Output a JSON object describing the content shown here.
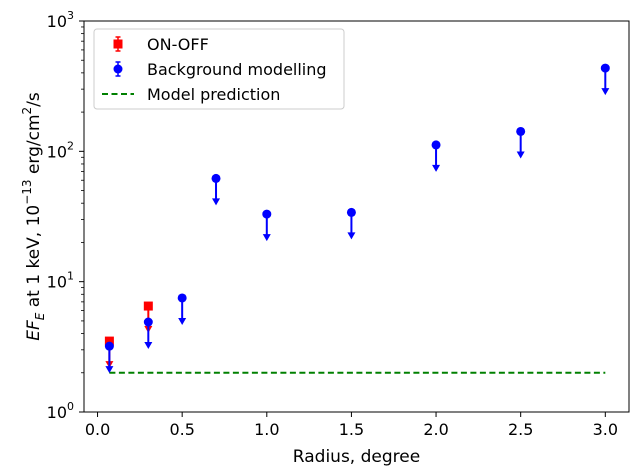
{
  "chart_data": {
    "type": "scatter",
    "xlabel": "Radius, degree",
    "ylabel": {
      "base": "EF",
      "sub": "E",
      "mid": " at 1 keV, 10",
      "exp": "−13",
      "unit_a": " erg/cm",
      "unit_exp": "2",
      "unit_b": "/s"
    },
    "xlim": [
      -0.08,
      3.14
    ],
    "ylim": [
      1,
      1000
    ],
    "yscale": "log",
    "grid": false,
    "legend_position": "top-left",
    "x_ticks": [
      {
        "value": 0.0,
        "label": "0.0"
      },
      {
        "value": 0.5,
        "label": "0.5"
      },
      {
        "value": 1.0,
        "label": "1.0"
      },
      {
        "value": 1.5,
        "label": "1.5"
      },
      {
        "value": 2.0,
        "label": "2.0"
      },
      {
        "value": 2.5,
        "label": "2.5"
      },
      {
        "value": 3.0,
        "label": "3.0"
      }
    ],
    "y_ticks": [
      {
        "value": 1,
        "base": "10",
        "exp": "0"
      },
      {
        "value": 10,
        "base": "10",
        "exp": "1"
      },
      {
        "value": 100,
        "base": "10",
        "exp": "2"
      },
      {
        "value": 1000,
        "base": "10",
        "exp": "3"
      }
    ],
    "series": [
      {
        "name": "ON-OFF",
        "marker": "square",
        "color": "#ff0000",
        "upper_limits": true,
        "points": [
          {
            "x": 0.07,
            "y": 3.5
          },
          {
            "x": 0.3,
            "y": 6.5
          }
        ]
      },
      {
        "name": "Background modelling",
        "marker": "circle",
        "color": "#0000ff",
        "upper_limits": true,
        "points": [
          {
            "x": 0.07,
            "y": 3.2
          },
          {
            "x": 0.3,
            "y": 4.9
          },
          {
            "x": 0.5,
            "y": 7.5
          },
          {
            "x": 0.7,
            "y": 62
          },
          {
            "x": 1.0,
            "y": 33
          },
          {
            "x": 1.5,
            "y": 34
          },
          {
            "x": 2.0,
            "y": 112
          },
          {
            "x": 2.5,
            "y": 142
          },
          {
            "x": 3.0,
            "y": 435
          }
        ]
      },
      {
        "name": "Model prediction",
        "type": "line",
        "style": "dashed",
        "color": "#008000",
        "points": [
          {
            "x": 0.07,
            "y": 2.0
          },
          {
            "x": 3.0,
            "y": 2.0
          }
        ]
      }
    ]
  }
}
